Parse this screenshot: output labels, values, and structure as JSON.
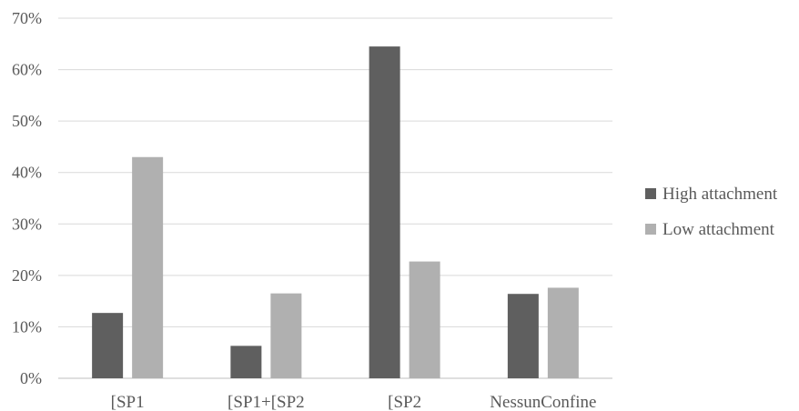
{
  "chart_data": {
    "type": "bar",
    "categories": [
      "[SP1",
      "[SP1+[SP2",
      "[SP2",
      "NessunConfine"
    ],
    "series": [
      {
        "name": "High attachment",
        "values": [
          12.7,
          6.3,
          64.5,
          16.4
        ],
        "color": "#5f5f5f"
      },
      {
        "name": "Low attachment",
        "values": [
          43.0,
          16.5,
          22.7,
          17.6
        ],
        "color": "#b0b0b0"
      }
    ],
    "y_ticks": [
      "0%",
      "10%",
      "20%",
      "30%",
      "40%",
      "50%",
      "60%",
      "70%"
    ],
    "ylim": [
      0,
      70
    ],
    "y_unit": "%",
    "grid": true,
    "legend_position": "right"
  }
}
